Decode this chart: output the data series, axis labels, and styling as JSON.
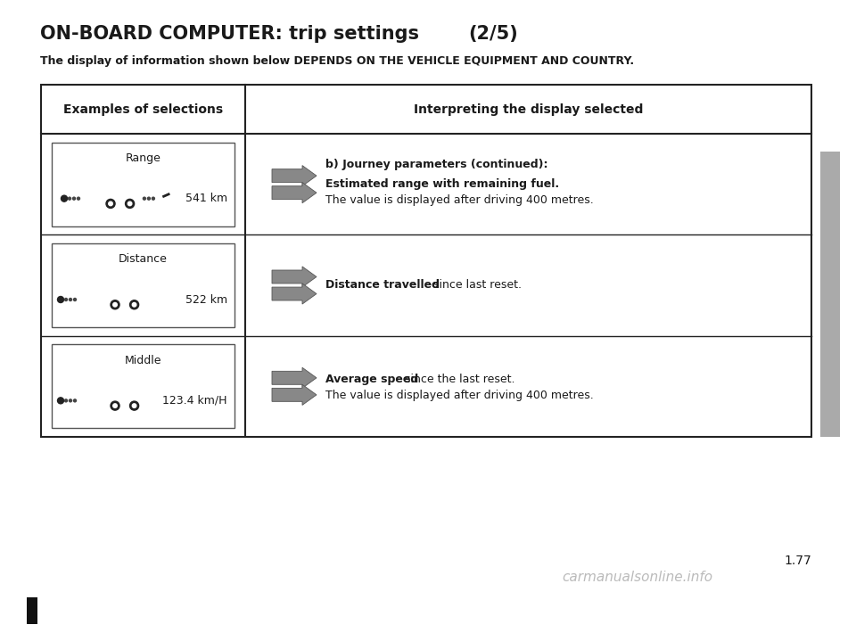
{
  "title_bold": "ON-BOARD COMPUTER: trip settings ",
  "title_paren": "(2/5)",
  "subtitle": "The display of information shown below DEPENDS ON THE VEHICLE EQUIPMENT AND COUNTRY.",
  "col1_header": "Examples of selections",
  "col2_header": "Interpreting the display selected",
  "rows": [
    {
      "label": "Range",
      "icon_type": "car_fuel",
      "value": "541 km",
      "row0_heading": "b) Journey parameters (continued):",
      "row0_line1_bold": "Estimated range with remaining fuel.",
      "row0_line1_normal": "The value is displayed after driving 400 metres."
    },
    {
      "label": "Distance",
      "icon_type": "car_trip",
      "value": "522 km",
      "inline_bold": "Distance travelled",
      "inline_normal": " since last reset."
    },
    {
      "label": "Middle",
      "icon_type": "car_trip",
      "value": "123.4 km/H",
      "inline_bold": "Average speed",
      "inline_normal": " since the last reset.",
      "extra_line": "The value is displayed after driving 400 metres."
    }
  ],
  "page_number": "1.77",
  "watermark": "carmanualsonline.info",
  "bg_color": "#ffffff",
  "text_color": "#1a1a1a",
  "border_color": "#222222",
  "sidebar_color": "#aaaaaa"
}
